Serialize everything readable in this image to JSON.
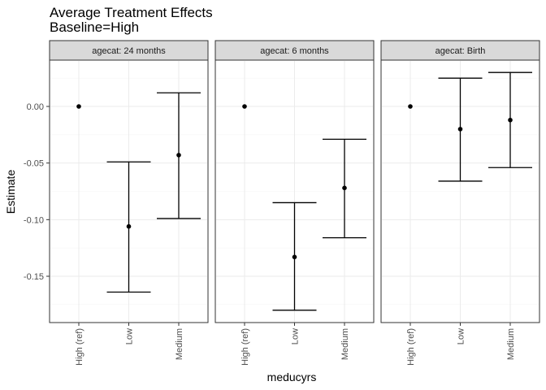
{
  "chart_data": {
    "type": "scatter",
    "title": "Average Treatment Effects",
    "subtitle": "Baseline=High",
    "xlabel": "meducyrs",
    "ylabel": "Estimate",
    "ylim": [
      -0.19,
      0.035
    ],
    "yticks": [
      0.0,
      -0.05,
      -0.1,
      -0.15
    ],
    "ytick_labels": [
      "0.00",
      "-0.05",
      "-0.10",
      "-0.15"
    ],
    "categories": [
      "High (ref)",
      "Low",
      "Medium"
    ],
    "grid": true,
    "panels": [
      {
        "strip": "agecat: 24 months",
        "points": [
          {
            "x": "High (ref)",
            "y": 0.0,
            "lower": null,
            "upper": null
          },
          {
            "x": "Low",
            "y": -0.106,
            "lower": -0.164,
            "upper": -0.049
          },
          {
            "x": "Medium",
            "y": -0.043,
            "lower": -0.099,
            "upper": 0.012
          }
        ]
      },
      {
        "strip": "agecat: 6 months",
        "points": [
          {
            "x": "High (ref)",
            "y": 0.0,
            "lower": null,
            "upper": null
          },
          {
            "x": "Low",
            "y": -0.133,
            "lower": -0.18,
            "upper": -0.085
          },
          {
            "x": "Medium",
            "y": -0.072,
            "lower": -0.116,
            "upper": -0.029
          }
        ]
      },
      {
        "strip": "agecat: Birth",
        "points": [
          {
            "x": "High (ref)",
            "y": 0.0,
            "lower": null,
            "upper": null
          },
          {
            "x": "Low",
            "y": -0.02,
            "lower": -0.066,
            "upper": 0.025
          },
          {
            "x": "Medium",
            "y": -0.012,
            "lower": -0.054,
            "upper": 0.03
          }
        ]
      }
    ]
  }
}
